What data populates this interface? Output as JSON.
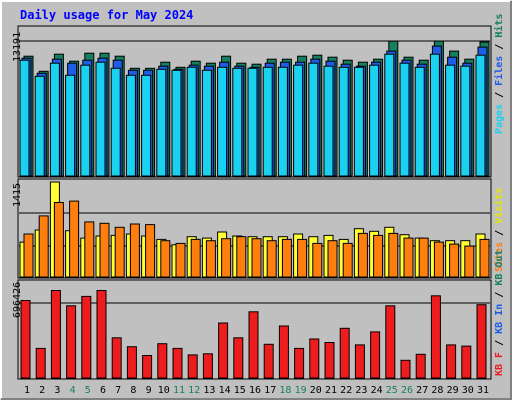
{
  "chart_data": [
    {
      "type": "bar",
      "title": "Daily usage for May 2024",
      "panel": "hits-files-pages",
      "categories": [
        "1",
        "2",
        "3",
        "4",
        "5",
        "6",
        "7",
        "8",
        "9",
        "10",
        "11",
        "12",
        "13",
        "14",
        "15",
        "16",
        "17",
        "18",
        "19",
        "20",
        "21",
        "22",
        "23",
        "24",
        "25",
        "26",
        "27",
        "28",
        "29",
        "30",
        "31"
      ],
      "weekend_days": [
        "4",
        "5",
        "11",
        "12",
        "18",
        "19",
        "25",
        "26"
      ],
      "ytick_label": "13191",
      "ylim": [
        0,
        14500
      ],
      "legend": [
        "Pages",
        "Files",
        "Hits"
      ],
      "legend_placement": "right-vertical",
      "series": [
        {
          "name": "Hits",
          "color": "#157f5f",
          "values": [
            11900,
            10400,
            12100,
            11400,
            12200,
            12200,
            11900,
            10700,
            10700,
            11300,
            10800,
            11400,
            11200,
            11900,
            11200,
            11100,
            11600,
            11600,
            11900,
            12000,
            11800,
            11500,
            11300,
            11600,
            13400,
            11800,
            11500,
            13400,
            12400,
            11600,
            13300
          ]
        },
        {
          "name": "Files",
          "color": "#1f5ce8",
          "values": [
            11700,
            10200,
            11600,
            11200,
            11500,
            11700,
            11500,
            10500,
            10500,
            10900,
            10600,
            11000,
            10900,
            11300,
            10900,
            10800,
            11200,
            11300,
            11300,
            11600,
            11400,
            11100,
            10900,
            11300,
            12400,
            11500,
            11100,
            12900,
            11800,
            11200,
            12800
          ]
        },
        {
          "name": "Pages",
          "color": "#1ad1f0",
          "values": [
            11500,
            9900,
            11200,
            10000,
            11000,
            11300,
            10700,
            10000,
            10000,
            10600,
            10500,
            10800,
            10500,
            10800,
            10700,
            10700,
            10800,
            10800,
            11000,
            11200,
            10900,
            10800,
            10800,
            11000,
            12100,
            11200,
            10800,
            12100,
            11000,
            10900,
            12000
          ]
        }
      ]
    },
    {
      "type": "bar",
      "panel": "visits-sites",
      "categories": [
        "1",
        "2",
        "3",
        "4",
        "5",
        "6",
        "7",
        "8",
        "9",
        "10",
        "11",
        "12",
        "13",
        "14",
        "15",
        "16",
        "17",
        "18",
        "19",
        "20",
        "21",
        "22",
        "23",
        "24",
        "25",
        "26",
        "27",
        "28",
        "29",
        "30",
        "31"
      ],
      "ytick_label": "1415",
      "ylim": [
        0,
        1415
      ],
      "legend": [
        "Sites",
        "Visits"
      ],
      "legend_placement": "right-vertical",
      "series": [
        {
          "name": "Visits",
          "color": "#ffff33",
          "values": [
            520,
            700,
            1415,
            690,
            580,
            610,
            620,
            640,
            610,
            560,
            480,
            600,
            580,
            670,
            610,
            600,
            600,
            600,
            640,
            600,
            620,
            560,
            720,
            680,
            740,
            630,
            580,
            540,
            540,
            540,
            640
          ]
        },
        {
          "name": "Sites",
          "color": "#ff7f0e",
          "values": [
            640,
            910,
            1110,
            1130,
            820,
            800,
            740,
            790,
            780,
            540,
            500,
            560,
            540,
            570,
            600,
            570,
            540,
            560,
            560,
            500,
            540,
            500,
            650,
            620,
            650,
            580,
            580,
            520,
            490,
            460,
            560
          ]
        }
      ]
    },
    {
      "type": "bar",
      "panel": "kbytes",
      "categories": [
        "1",
        "2",
        "3",
        "4",
        "5",
        "6",
        "7",
        "8",
        "9",
        "10",
        "11",
        "12",
        "13",
        "14",
        "15",
        "16",
        "17",
        "18",
        "19",
        "20",
        "21",
        "22",
        "23",
        "24",
        "25",
        "26",
        "27",
        "28",
        "29",
        "30",
        "31"
      ],
      "ytick_label": "696426",
      "ylim": [
        0,
        820000
      ],
      "legend": [
        "KB F",
        "KB In",
        "KB Out"
      ],
      "legend_placement": "right-vertical",
      "series": [
        {
          "name": "KB F",
          "color": "#ee1c1c",
          "values": [
            655000,
            250000,
            740000,
            610000,
            690000,
            740000,
            340000,
            265000,
            190000,
            290000,
            250000,
            195000,
            205000,
            465000,
            340000,
            560000,
            285000,
            440000,
            250000,
            330000,
            300000,
            420000,
            280000,
            390000,
            610000,
            150000,
            200000,
            695000,
            280000,
            270000,
            620000
          ]
        }
      ]
    }
  ],
  "colors": {
    "background": "#c0c0c0",
    "frame_dark": "#808080",
    "frame_light": "#ffffff",
    "title": "#0000ff",
    "weekend_label": "#157f5f",
    "weekday_label": "#000000"
  }
}
